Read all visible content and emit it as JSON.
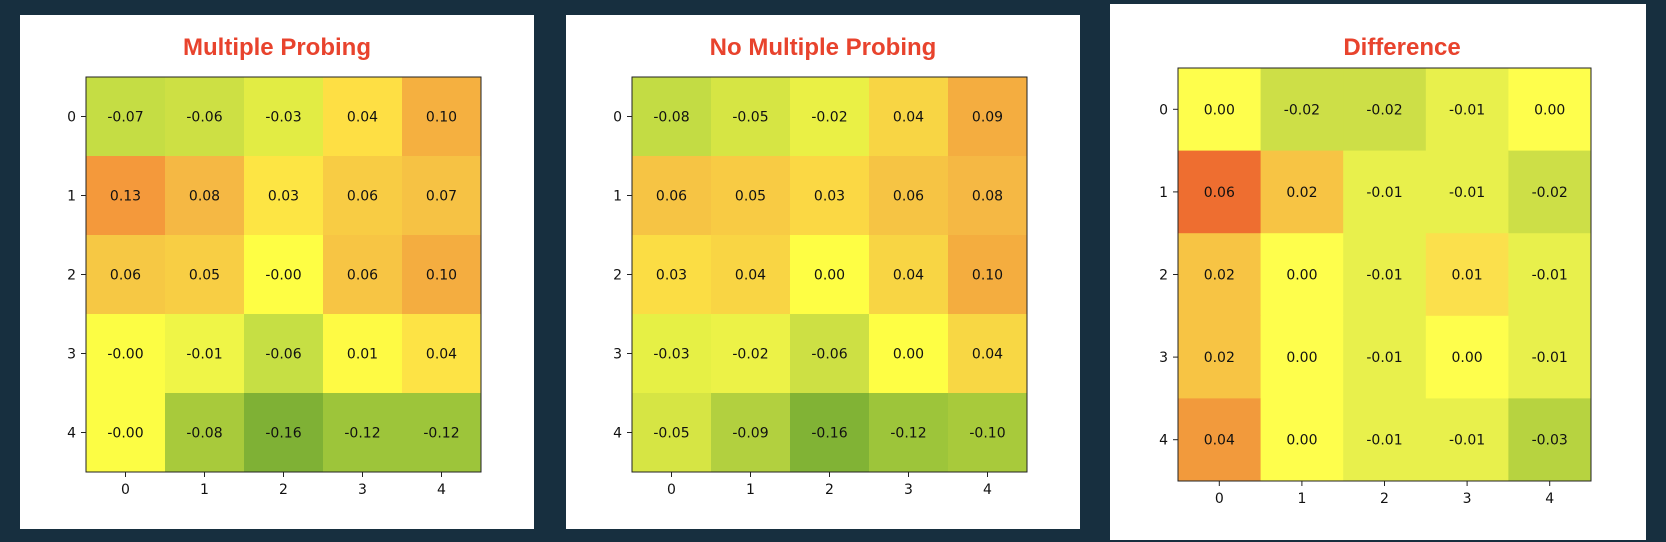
{
  "chart_data": [
    {
      "type": "heatmap",
      "title": "Multiple Probing",
      "x_ticks": [
        "0",
        "1",
        "2",
        "3",
        "4"
      ],
      "y_ticks": [
        "0",
        "1",
        "2",
        "3",
        "4"
      ],
      "values": [
        [
          -0.07,
          -0.06,
          -0.03,
          0.04,
          0.1
        ],
        [
          0.13,
          0.08,
          0.03,
          0.06,
          0.07
        ],
        [
          0.06,
          0.05,
          -0.0,
          0.06,
          0.1
        ],
        [
          -0.0,
          -0.01,
          -0.06,
          0.01,
          0.04
        ],
        [
          -0.0,
          -0.08,
          -0.16,
          -0.12,
          -0.12
        ]
      ],
      "labels": [
        [
          "-0.07",
          "-0.06",
          "-0.03",
          "0.04",
          "0.10"
        ],
        [
          "0.13",
          "0.08",
          "0.03",
          "0.06",
          "0.07"
        ],
        [
          "0.06",
          "0.05",
          "-0.00",
          "0.06",
          "0.10"
        ],
        [
          "-0.00",
          "-0.01",
          "-0.06",
          "0.01",
          "0.04"
        ],
        [
          "-0.00",
          "-0.08",
          "-0.16",
          "-0.12",
          "-0.12"
        ]
      ],
      "colors": [
        [
          "#c5dd44",
          "#cde044",
          "#e2ec44",
          "#fedf44",
          "#f5b040"
        ],
        [
          "#f4993b",
          "#f5b844",
          "#fde544",
          "#f8cc44",
          "#f6c244"
        ],
        [
          "#f6c844",
          "#f8ce44",
          "#fefe44",
          "#f7c544",
          "#f4ad40"
        ],
        [
          "#fcfd44",
          "#eff547",
          "#c6df44",
          "#fefa44",
          "#fde345"
        ],
        [
          "#fcfd44",
          "#a8ca3b",
          "#7fb135",
          "#9dc53a",
          "#9dc53a"
        ]
      ],
      "grid": false
    },
    {
      "type": "heatmap",
      "title": "No Multiple Probing",
      "x_ticks": [
        "0",
        "1",
        "2",
        "3",
        "4"
      ],
      "y_ticks": [
        "0",
        "1",
        "2",
        "3",
        "4"
      ],
      "values": [
        [
          -0.08,
          -0.05,
          -0.02,
          0.04,
          0.09
        ],
        [
          0.06,
          0.05,
          0.03,
          0.06,
          0.08
        ],
        [
          0.03,
          0.04,
          0.0,
          0.04,
          0.1
        ],
        [
          -0.03,
          -0.02,
          -0.06,
          0.0,
          0.04
        ],
        [
          -0.05,
          -0.09,
          -0.16,
          -0.12,
          -0.1
        ]
      ],
      "labels": [
        [
          "-0.08",
          "-0.05",
          "-0.02",
          "0.04",
          "0.09"
        ],
        [
          "0.06",
          "0.05",
          "0.03",
          "0.06",
          "0.08"
        ],
        [
          "0.03",
          "0.04",
          "0.00",
          "0.04",
          "0.10"
        ],
        [
          "-0.03",
          "-0.02",
          "-0.06",
          "0.00",
          "0.04"
        ],
        [
          "-0.05",
          "-0.09",
          "-0.16",
          "-0.12",
          "-0.10"
        ]
      ],
      "colors": [
        [
          "#c3dc44",
          "#d6e544",
          "#eaf045",
          "#f8d544",
          "#f4ad40"
        ],
        [
          "#f6c444",
          "#f8cb44",
          "#fbd844",
          "#f6c444",
          "#f5b844"
        ],
        [
          "#fbdd44",
          "#f9d544",
          "#fefe44",
          "#f8d544",
          "#f4ad3f"
        ],
        [
          "#e6f045",
          "#ecf247",
          "#cde044",
          "#fefe44",
          "#f8d744"
        ],
        [
          "#d6e544",
          "#b2d03f",
          "#81b335",
          "#9dc53a",
          "#a8ca3b"
        ]
      ],
      "grid": false
    },
    {
      "type": "heatmap",
      "title": "Difference",
      "x_ticks": [
        "0",
        "1",
        "2",
        "3",
        "4"
      ],
      "y_ticks": [
        "0",
        "1",
        "2",
        "3",
        "4"
      ],
      "values": [
        [
          0.0,
          -0.02,
          -0.02,
          -0.01,
          0.0
        ],
        [
          0.06,
          0.02,
          -0.01,
          -0.01,
          -0.02
        ],
        [
          0.02,
          0.0,
          -0.01,
          0.01,
          -0.01
        ],
        [
          0.02,
          0.0,
          -0.01,
          0.0,
          -0.01
        ],
        [
          0.04,
          0.0,
          -0.01,
          -0.01,
          -0.03
        ]
      ],
      "labels": [
        [
          "0.00",
          "-0.02",
          "-0.02",
          "-0.01",
          "0.00"
        ],
        [
          "0.06",
          "0.02",
          "-0.01",
          "-0.01",
          "-0.02"
        ],
        [
          "0.02",
          "0.00",
          "-0.01",
          "0.01",
          "-0.01"
        ],
        [
          "0.02",
          "0.00",
          "-0.01",
          "0.00",
          "-0.01"
        ],
        [
          "0.04",
          "0.00",
          "-0.01",
          "-0.01",
          "-0.03"
        ]
      ],
      "colors": [
        [
          "#fefe4c",
          "#cddf47",
          "#cddf47",
          "#e8f04c",
          "#fefe4c"
        ],
        [
          "#ee6e30",
          "#f7c444",
          "#e8f04c",
          "#e8f04c",
          "#cddf47"
        ],
        [
          "#f7c444",
          "#fefe4c",
          "#e8f04c",
          "#fbe04c",
          "#e8f04c"
        ],
        [
          "#f7c444",
          "#fefe4c",
          "#e8f04c",
          "#fefe4c",
          "#e8f04c"
        ],
        [
          "#f29a3c",
          "#fefe4c",
          "#e8f04c",
          "#e8f04c",
          "#b7d340"
        ]
      ],
      "grid": false
    }
  ]
}
